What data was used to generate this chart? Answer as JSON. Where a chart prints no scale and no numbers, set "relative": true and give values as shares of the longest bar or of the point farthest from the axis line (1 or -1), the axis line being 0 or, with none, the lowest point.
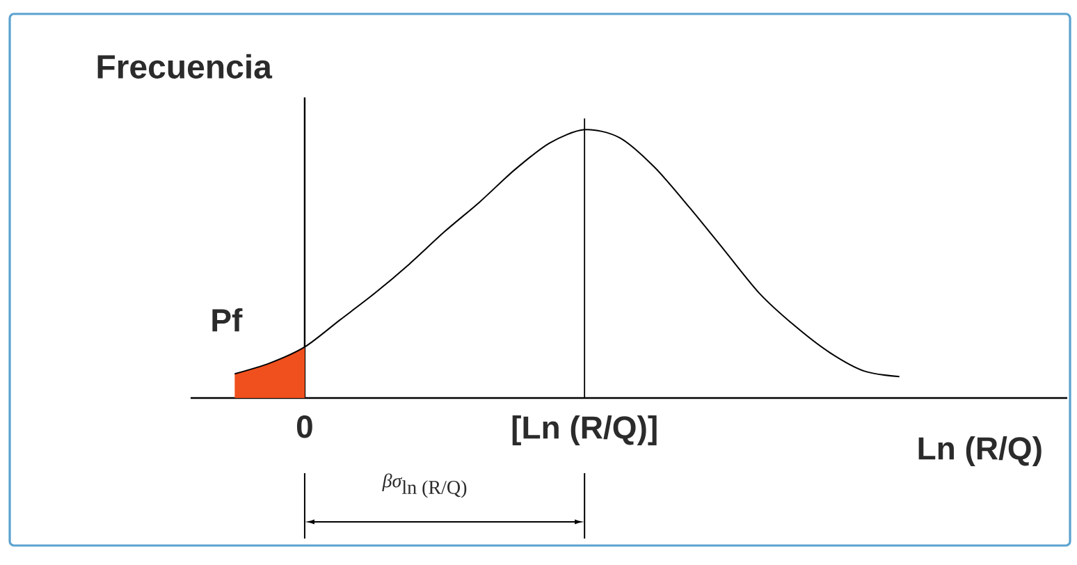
{
  "chart_data": {
    "type": "line",
    "relative": true,
    "xlabel": "Ln (R/Q)",
    "ylabel": "Frecuencia",
    "categories": [
      null,
      null,
      "0",
      null,
      null,
      null,
      null,
      null,
      null,
      null,
      "[Ln (R/Q)]",
      null,
      null,
      null,
      null,
      null,
      null,
      null,
      null,
      null
    ],
    "series": [
      {
        "color": "#000000",
        "values": [
          0.09,
          0.13,
          0.19,
          0.29,
          0.39,
          0.5,
          0.62,
          0.73,
          0.85,
          0.95,
          1.0,
          0.97,
          0.86,
          0.71,
          0.55,
          0.39,
          0.27,
          0.17,
          0.1,
          0.08
        ]
      },
      {
        "name": "Pf",
        "type": "area",
        "color": "#f0501e",
        "values": [
          0.09,
          0.13,
          0.19,
          null,
          null,
          null,
          null,
          null,
          null,
          null,
          null,
          null,
          null,
          null,
          null,
          null,
          null,
          null,
          null,
          null
        ]
      }
    ],
    "ref_lines": [
      {
        "axis": "x",
        "value": "[Ln (R/Q)]",
        "color": "#000000"
      }
    ],
    "annotations": [
      "\\textit{βσ}_{\\textrm{ln (R/Q)}}"
    ],
    "marker": "none",
    "line_style": "solid"
  }
}
